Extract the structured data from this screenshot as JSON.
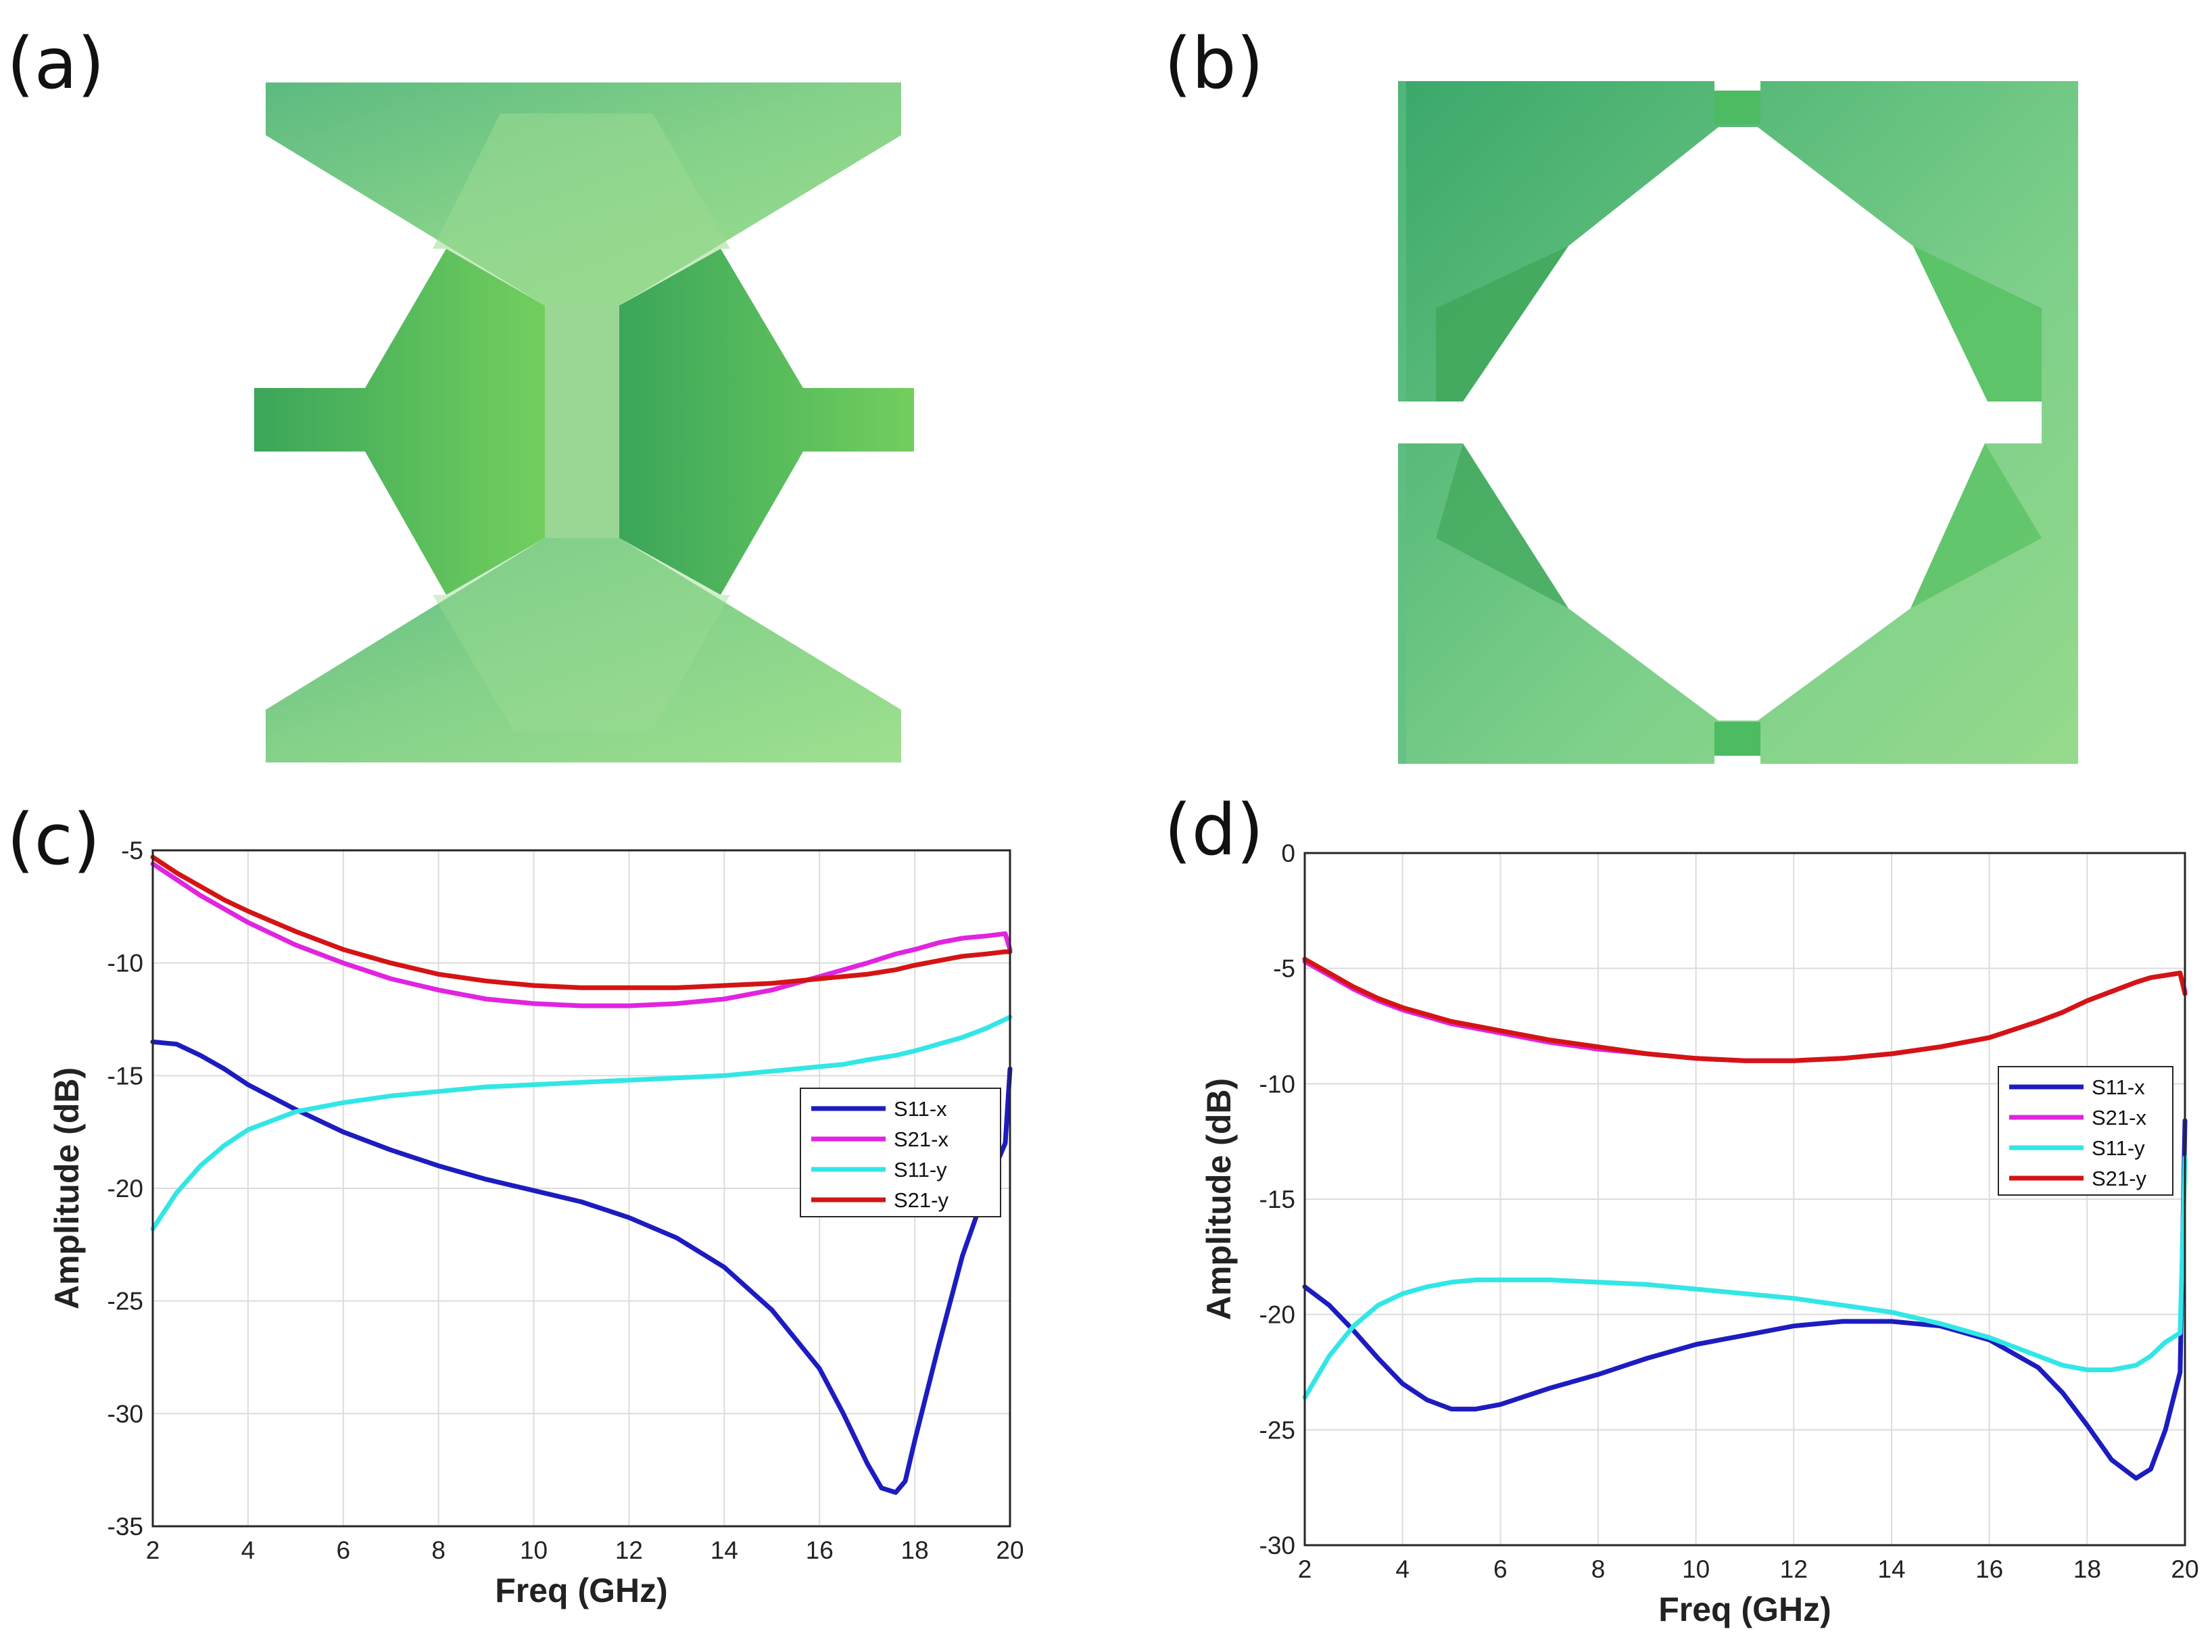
{
  "panels": {
    "a": "(a)",
    "b": "(b)",
    "c": "(c)",
    "d": "(d)"
  },
  "colors": {
    "S11-x": "#1c1cc0",
    "S21-x": "#e024e0",
    "S11-y": "#33e6e6",
    "S21-y": "#d41414",
    "metal_dark": "#3fae5e",
    "metal_light": "#8fd88a"
  },
  "chart_data": [
    {
      "type": "line",
      "id": "c",
      "title": "",
      "xlabel": "Freq (GHz)",
      "ylabel": "Amplitude (dB)",
      "xlim": [
        2,
        20
      ],
      "ylim": [
        -35,
        -5
      ],
      "xticks": [
        2,
        4,
        6,
        8,
        10,
        12,
        14,
        16,
        18,
        20
      ],
      "yticks": [
        -35,
        -30,
        -25,
        -20,
        -15,
        -10,
        -5
      ],
      "grid": true,
      "legend_position": "center-right",
      "x": [
        2,
        2.5,
        3,
        3.5,
        4,
        5,
        6,
        7,
        8,
        9,
        10,
        11,
        12,
        13,
        14,
        15,
        16,
        16.5,
        17,
        17.3,
        17.6,
        17.8,
        18,
        18.5,
        19,
        19.5,
        19.9,
        20
      ],
      "series": [
        {
          "name": "S11-x",
          "values": [
            -13.5,
            -13.6,
            -14.1,
            -14.7,
            -15.4,
            -16.5,
            -17.5,
            -18.3,
            -19.0,
            -19.6,
            -20.1,
            -20.6,
            -21.3,
            -22.2,
            -23.5,
            -25.4,
            -28.0,
            -30.0,
            -32.2,
            -33.3,
            -33.5,
            -33.0,
            -31.2,
            -27.0,
            -23.0,
            -20.0,
            -18.0,
            -14.7
          ]
        },
        {
          "name": "S21-x",
          "values": [
            -5.6,
            -6.3,
            -7.0,
            -7.6,
            -8.2,
            -9.2,
            -10.0,
            -10.7,
            -11.2,
            -11.6,
            -11.8,
            -11.9,
            -11.9,
            -11.8,
            -11.6,
            -11.2,
            -10.6,
            -10.3,
            -10.0,
            -9.8,
            -9.6,
            -9.5,
            -9.4,
            -9.1,
            -8.9,
            -8.8,
            -8.7,
            -9.4
          ]
        },
        {
          "name": "S11-y",
          "values": [
            -21.8,
            -20.2,
            -19.0,
            -18.1,
            -17.4,
            -16.6,
            -16.2,
            -15.9,
            -15.7,
            -15.5,
            -15.4,
            -15.3,
            -15.2,
            -15.1,
            -15.0,
            -14.8,
            -14.6,
            -14.5,
            -14.3,
            -14.2,
            -14.1,
            -14.0,
            -13.9,
            -13.6,
            -13.3,
            -12.9,
            -12.5,
            -12.4
          ]
        },
        {
          "name": "S21-y",
          "values": [
            -5.3,
            -6.0,
            -6.6,
            -7.2,
            -7.7,
            -8.6,
            -9.4,
            -10.0,
            -10.5,
            -10.8,
            -11.0,
            -11.1,
            -11.1,
            -11.1,
            -11.0,
            -10.9,
            -10.7,
            -10.6,
            -10.5,
            -10.4,
            -10.3,
            -10.2,
            -10.1,
            -9.9,
            -9.7,
            -9.6,
            -9.5,
            -9.5
          ]
        }
      ],
      "legend": [
        "S11-x",
        "S21-x",
        "S11-y",
        "S21-y"
      ]
    },
    {
      "type": "line",
      "id": "d",
      "title": "",
      "xlabel": "Freq (GHz)",
      "ylabel": "Amplitude (dB)",
      "xlim": [
        2,
        20
      ],
      "ylim": [
        -30,
        0
      ],
      "xticks": [
        2,
        4,
        6,
        8,
        10,
        12,
        14,
        16,
        18,
        20
      ],
      "yticks": [
        -30,
        -25,
        -20,
        -15,
        -10,
        -5,
        0
      ],
      "grid": true,
      "legend_position": "center-right",
      "x": [
        2,
        2.5,
        3,
        3.5,
        4,
        4.5,
        5,
        5.5,
        6,
        7,
        8,
        9,
        10,
        11,
        12,
        13,
        14,
        15,
        16,
        17,
        17.5,
        18,
        18.5,
        19,
        19.3,
        19.6,
        19.9,
        20
      ],
      "series": [
        {
          "name": "S11-x",
          "values": [
            -18.8,
            -19.6,
            -20.7,
            -21.9,
            -23.0,
            -23.7,
            -24.1,
            -24.1,
            -23.9,
            -23.2,
            -22.6,
            -21.9,
            -21.3,
            -20.9,
            -20.5,
            -20.3,
            -20.3,
            -20.5,
            -21.1,
            -22.3,
            -23.4,
            -24.8,
            -26.3,
            -27.1,
            -26.7,
            -25.0,
            -22.5,
            -11.6
          ]
        },
        {
          "name": "S21-x",
          "values": [
            -4.7,
            -5.3,
            -5.9,
            -6.4,
            -6.8,
            -7.1,
            -7.4,
            -7.6,
            -7.8,
            -8.2,
            -8.5,
            -8.7,
            -8.9,
            -9.0,
            -9.0,
            -8.9,
            -8.7,
            -8.4,
            -8.0,
            -7.3,
            -6.9,
            -6.4,
            -6.0,
            -5.6,
            -5.4,
            -5.3,
            -5.2,
            -6.0
          ]
        },
        {
          "name": "S11-y",
          "values": [
            -23.6,
            -21.8,
            -20.5,
            -19.6,
            -19.1,
            -18.8,
            -18.6,
            -18.5,
            -18.5,
            -18.5,
            -18.6,
            -18.7,
            -18.9,
            -19.1,
            -19.3,
            -19.6,
            -19.9,
            -20.4,
            -21.0,
            -21.8,
            -22.2,
            -22.4,
            -22.4,
            -22.2,
            -21.8,
            -21.2,
            -20.8,
            -13.2
          ]
        },
        {
          "name": "S21-y",
          "values": [
            -4.6,
            -5.2,
            -5.8,
            -6.3,
            -6.7,
            -7.0,
            -7.3,
            -7.5,
            -7.7,
            -8.1,
            -8.4,
            -8.7,
            -8.9,
            -9.0,
            -9.0,
            -8.9,
            -8.7,
            -8.4,
            -8.0,
            -7.3,
            -6.9,
            -6.4,
            -6.0,
            -5.6,
            -5.4,
            -5.3,
            -5.2,
            -6.1
          ]
        }
      ],
      "legend": [
        "S11-x",
        "S21-x",
        "S11-y",
        "S21-y"
      ]
    }
  ]
}
